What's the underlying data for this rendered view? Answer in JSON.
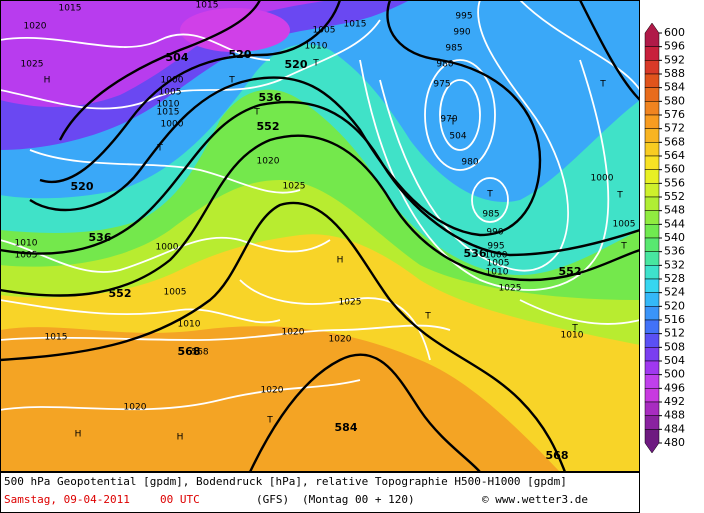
{
  "map": {
    "labels": [
      "1015",
      "1020",
      "1025",
      "H",
      "504",
      "1015",
      "520",
      "T",
      "1005",
      "1010",
      "1015",
      "1000",
      "995",
      "990",
      "985",
      "980",
      "975",
      "970",
      "504",
      "T",
      "980",
      "985",
      "990",
      "995",
      "1000",
      "1005",
      "1010",
      "T",
      "1000",
      "1005",
      "552",
      "536",
      "520",
      "T",
      "536",
      "520",
      "552",
      "568",
      "1020",
      "1025",
      "T",
      "1000",
      "1005",
      "1010",
      "H",
      "1025",
      "1000",
      "1005",
      "1010",
      "1015",
      "T",
      "1010",
      "1005",
      "536",
      "552",
      "T",
      "568",
      "1020",
      "1020",
      "1015",
      "1020",
      "1020",
      "H",
      "H",
      "T",
      "584",
      "568",
      "T",
      "T",
      "T",
      "T",
      "1010",
      "1025"
    ]
  },
  "colorbar": {
    "ticks": [
      600,
      596,
      592,
      588,
      584,
      580,
      576,
      572,
      568,
      564,
      560,
      556,
      552,
      548,
      544,
      540,
      536,
      532,
      528,
      524,
      520,
      516,
      512,
      508,
      504,
      500,
      496,
      492,
      488,
      484,
      480
    ],
    "colors": [
      "#b01a48",
      "#c8203c",
      "#d83a28",
      "#e0541c",
      "#e86c1c",
      "#f08420",
      "#f89c20",
      "#f8b422",
      "#f8cc22",
      "#f8e224",
      "#e8f024",
      "#cef02c",
      "#b0ee34",
      "#90ec40",
      "#70ea50",
      "#58e870",
      "#48e6a0",
      "#3ee2cc",
      "#36d6f0",
      "#34b8f8",
      "#3a94f8",
      "#4272f8",
      "#5a50f4",
      "#7a3ef0",
      "#a038f0",
      "#c040ec",
      "#c83ae0",
      "#a82cc0",
      "#8a22a0",
      "#6e1a80"
    ]
  },
  "footer": {
    "description": "500 hPa Geopotential [gpdm], Bodendruck [hPa], relative Topographie H500-H1000 [gpdm]",
    "date": "Samstag, 09-04-2011",
    "time": "00 UTC",
    "model": "(GFS)",
    "run": "(Montag 00 + 120)",
    "credit": "© www.wetter3.de"
  }
}
